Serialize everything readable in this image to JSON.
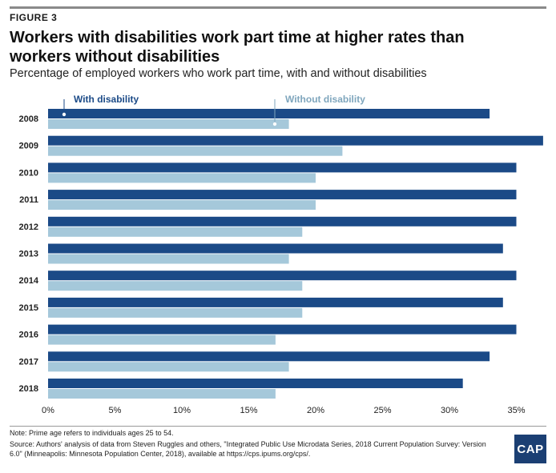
{
  "figure_label": "FIGURE 3",
  "title": "Workers with disabilities work part time at higher rates than workers without disabilities",
  "subtitle": "Percentage of employed workers who work part time, with and without disabilities",
  "note": "Note: Prime age refers to individuals ages 25 to 54.",
  "source": "Source: Authors' analysis of data from Steven Ruggles and others, \"Integrated Public Use Microdata Series, 2018 Current Population Survey: Version 6.0\" (Minneapolis: Minnesota Population Center, 2018), available at https://cps.ipums.org/cps/.",
  "logo_text": "CAP",
  "colors": {
    "with_disability": "#1b4a87",
    "without_disability": "#a5c8da",
    "without_label": "#7fa6bd"
  },
  "chart_data": {
    "type": "bar",
    "orientation": "horizontal",
    "categories": [
      "2008",
      "2009",
      "2010",
      "2011",
      "2012",
      "2013",
      "2014",
      "2015",
      "2016",
      "2017",
      "2018"
    ],
    "series": [
      {
        "name": "With disability",
        "values": [
          33,
          37,
          35,
          35,
          35,
          34,
          35,
          34,
          35,
          33,
          31
        ]
      },
      {
        "name": "Without disability",
        "values": [
          18,
          22,
          20,
          20,
          19,
          18,
          19,
          19,
          17,
          18,
          17
        ]
      }
    ],
    "xlim": [
      0,
      37
    ],
    "xticks": [
      0,
      5,
      10,
      15,
      20,
      25,
      30,
      35
    ],
    "xtick_labels": [
      "0%",
      "5%",
      "10%",
      "15%",
      "20%",
      "25%",
      "30%",
      "35%"
    ],
    "xlabel": "",
    "ylabel": "",
    "grid": false,
    "legend": "inline-top"
  }
}
